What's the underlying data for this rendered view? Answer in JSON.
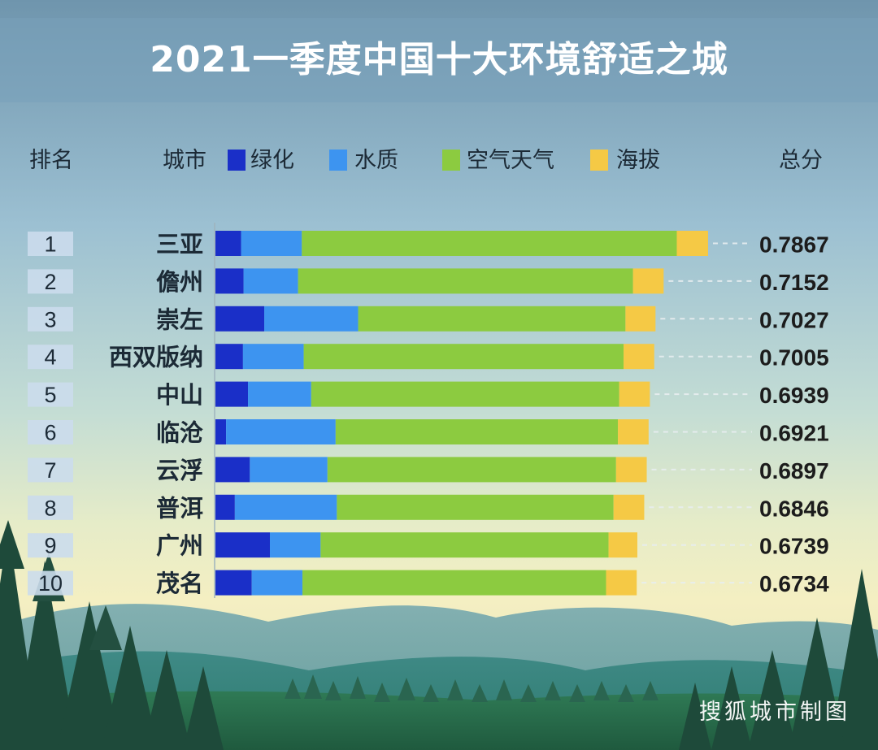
{
  "title": "2021一季度中国十大环境舒适之城",
  "headers": {
    "rank": "排名",
    "city": "城市",
    "total": "总分"
  },
  "colors": {
    "green": "#1a2fc8",
    "water": "#3d94f0",
    "air": "#8ccb40",
    "altitude": "#f5c945"
  },
  "watermark": "搜狐城市制图",
  "chart_data": {
    "type": "bar",
    "orientation": "horizontal",
    "stacked": true,
    "title": "2021一季度中国十大环境舒适之城",
    "legend": [
      "绿化",
      "水质",
      "空气天气",
      "海拔"
    ],
    "legend_placement": "top",
    "ranks": [
      "1",
      "2",
      "3",
      "4",
      "5",
      "6",
      "7",
      "8",
      "9",
      "10"
    ],
    "categories": [
      "三亚",
      "儋州",
      "崇左",
      "西双版纳",
      "中山",
      "临沧",
      "云浮",
      "普洱",
      "广州",
      "茂名"
    ],
    "totals": [
      "0.7867",
      "0.7152",
      "0.7027",
      "0.7005",
      "0.6939",
      "0.6921",
      "0.6897",
      "0.6846",
      "0.6739",
      "0.6734"
    ],
    "series": [
      {
        "name": "绿化",
        "color": "#1a2fc8",
        "values": [
          0.041,
          0.045,
          0.078,
          0.044,
          0.052,
          0.017,
          0.055,
          0.031,
          0.087,
          0.058
        ]
      },
      {
        "name": "水质",
        "color": "#3d94f0",
        "values": [
          0.097,
          0.087,
          0.15,
          0.097,
          0.101,
          0.175,
          0.124,
          0.163,
          0.081,
          0.081
        ]
      },
      {
        "name": "空气天气",
        "color": "#8ccb40",
        "values": [
          0.599,
          0.535,
          0.427,
          0.511,
          0.492,
          0.451,
          0.461,
          0.442,
          0.46,
          0.485
        ]
      },
      {
        "name": "海拔",
        "color": "#f5c945",
        "values": [
          0.05,
          0.049,
          0.048,
          0.049,
          0.049,
          0.049,
          0.049,
          0.049,
          0.046,
          0.049
        ]
      }
    ]
  }
}
